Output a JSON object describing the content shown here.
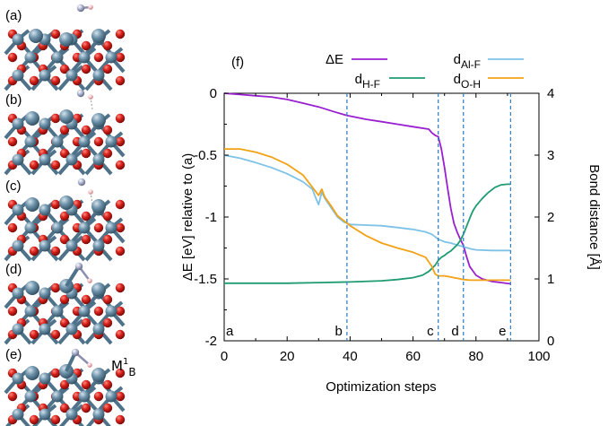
{
  "panels": {
    "labels": [
      "(a)",
      "(b)",
      "(c)",
      "(d)",
      "(e)"
    ],
    "inset_label_main": "M",
    "inset_label_sup": "1",
    "inset_label_sub": "B"
  },
  "colors": {
    "oxygen": "#cc1a14",
    "aluminum": "#6e93ab",
    "bond": "#4d7289",
    "fluorine": "#b3b8cf",
    "hydrogen": "#f2b6bc",
    "dashed_line": "#3b83c4"
  },
  "chart_data": {
    "type": "line",
    "panel_label": "(f)",
    "xlabel": "Optimization steps",
    "ylabel_left": "ΔE [eV] relative to (a)",
    "ylabel_right": "Bond distance [Å]",
    "xlim": [
      0,
      100
    ],
    "ylim_left": [
      -2,
      0
    ],
    "ylim_right": [
      0,
      4
    ],
    "xticks": [
      "0",
      "20",
      "40",
      "60",
      "80",
      "100"
    ],
    "yticks_left": [
      "0",
      "-0.5",
      "-1",
      "-1.5",
      "-2"
    ],
    "yticks_right": [
      "0",
      "1",
      "2",
      "3",
      "4"
    ],
    "grid": false,
    "legend_position": "top",
    "markers": [
      {
        "label": "a",
        "x": 0
      },
      {
        "label": "b",
        "x": 39
      },
      {
        "label": "c",
        "x": 68
      },
      {
        "label": "d",
        "x": 76
      },
      {
        "label": "e",
        "x": 91
      }
    ],
    "series": [
      {
        "name": "ΔE",
        "axis": "left",
        "color": "#9a1fd0",
        "x": [
          0,
          5,
          10,
          15,
          20,
          25,
          30,
          35,
          39,
          45,
          50,
          55,
          60,
          65,
          66,
          67,
          68,
          69,
          70,
          71,
          72,
          73,
          74,
          75,
          76,
          77,
          78,
          80,
          82,
          85,
          88,
          91
        ],
        "y": [
          0,
          -0.01,
          -0.02,
          -0.03,
          -0.05,
          -0.08,
          -0.11,
          -0.15,
          -0.18,
          -0.21,
          -0.23,
          -0.25,
          -0.27,
          -0.29,
          -0.32,
          -0.34,
          -0.35,
          -0.45,
          -0.6,
          -0.77,
          -0.93,
          -1.05,
          -1.12,
          -1.18,
          -1.23,
          -1.32,
          -1.4,
          -1.47,
          -1.5,
          -1.52,
          -1.53,
          -1.54
        ]
      },
      {
        "name": "d_Al-F",
        "axis": "right",
        "color": "#7ec2e8",
        "x": [
          0,
          5,
          10,
          15,
          20,
          25,
          28,
          29,
          30,
          31,
          32,
          34,
          36,
          38,
          40,
          45,
          50,
          55,
          60,
          64,
          66,
          68,
          70,
          72,
          74,
          76,
          78,
          80,
          85,
          91
        ],
        "y": [
          3.0,
          2.95,
          2.88,
          2.8,
          2.7,
          2.57,
          2.45,
          2.32,
          2.2,
          2.4,
          2.3,
          2.15,
          2.0,
          1.92,
          1.88,
          1.87,
          1.86,
          1.83,
          1.8,
          1.76,
          1.72,
          1.64,
          1.6,
          1.58,
          1.55,
          1.52,
          1.49,
          1.47,
          1.46,
          1.46
        ]
      },
      {
        "name": "d_H-F",
        "axis": "right",
        "color": "#1e9c70",
        "x": [
          0,
          10,
          20,
          30,
          40,
          50,
          55,
          60,
          63,
          65,
          67,
          68,
          69,
          70,
          71,
          72,
          73,
          74,
          75,
          76,
          77,
          78,
          79,
          80,
          82,
          84,
          86,
          88,
          90,
          91
        ],
        "y": [
          0.93,
          0.93,
          0.93,
          0.94,
          0.95,
          0.97,
          0.99,
          1.02,
          1.06,
          1.12,
          1.22,
          1.3,
          1.35,
          1.38,
          1.42,
          1.45,
          1.5,
          1.55,
          1.62,
          1.72,
          1.85,
          1.98,
          2.1,
          2.18,
          2.3,
          2.4,
          2.48,
          2.52,
          2.53,
          2.53
        ]
      },
      {
        "name": "d_O-H",
        "axis": "right",
        "color": "#f2a215",
        "x": [
          0,
          5,
          10,
          15,
          20,
          25,
          30,
          31,
          32,
          34,
          36,
          38,
          40,
          45,
          50,
          55,
          60,
          64,
          66,
          67,
          68,
          70,
          72,
          74,
          76,
          78,
          80,
          85,
          91
        ],
        "y": [
          3.1,
          3.1,
          3.05,
          2.97,
          2.85,
          2.68,
          2.35,
          2.45,
          2.32,
          2.18,
          2.02,
          1.94,
          1.86,
          1.7,
          1.58,
          1.5,
          1.43,
          1.35,
          1.2,
          1.08,
          1.05,
          1.05,
          1.03,
          1.01,
          0.99,
          0.98,
          0.98,
          0.98,
          0.98
        ]
      }
    ]
  }
}
